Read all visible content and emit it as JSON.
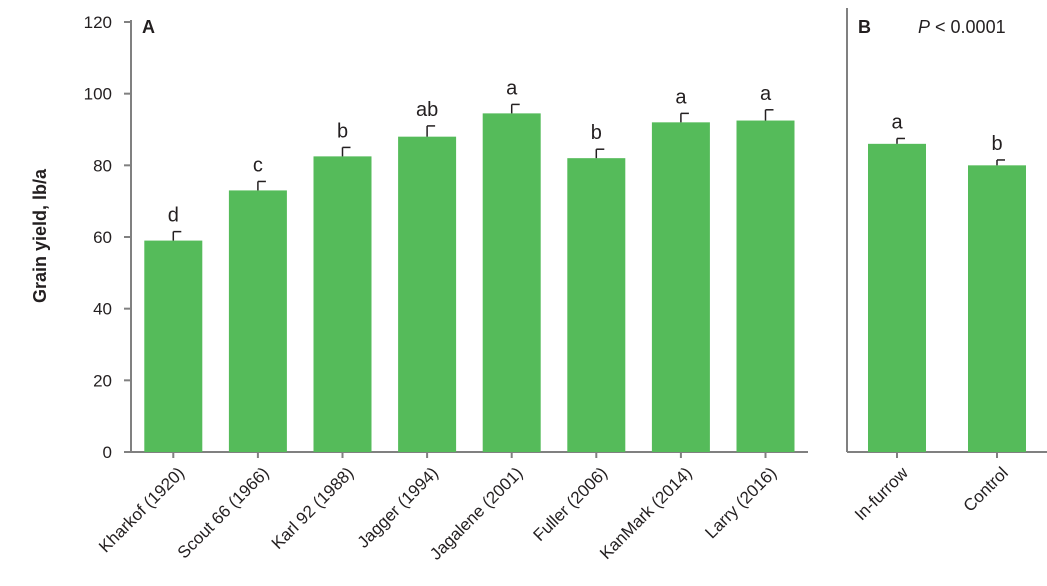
{
  "chart_data": [
    {
      "type": "bar",
      "panel_label": "A",
      "ylabel": "Grain yield, lb/a",
      "ylim": [
        0,
        120
      ],
      "yticks": [
        0,
        20,
        40,
        60,
        80,
        100,
        120
      ],
      "categories": [
        "Kharkof (1920)",
        "Scout 66 (1966)",
        "Karl 92 (1988)",
        "Jagger (1994)",
        "Jagalene (2001)",
        "Fuller (2006)",
        "KanMark (2014)",
        "Larry (2016)"
      ],
      "values": [
        59,
        73,
        82.5,
        88,
        94.5,
        82,
        92,
        92.5
      ],
      "errors": [
        2.5,
        2.5,
        2.5,
        3,
        2.5,
        2.5,
        2.5,
        3
      ],
      "significance": [
        "d",
        "c",
        "b",
        "ab",
        "a",
        "b",
        "a",
        "a"
      ],
      "bar_color": "#55bb5a"
    },
    {
      "type": "bar",
      "panel_label": "B",
      "annotation_italic": "P",
      "annotation_rest": " < 0.0001",
      "ylim": [
        0,
        120
      ],
      "categories": [
        "In-furrow",
        "Control"
      ],
      "values": [
        86,
        80
      ],
      "errors": [
        1.5,
        1.5
      ],
      "significance": [
        "a",
        "b"
      ],
      "bar_color": "#55bb5a"
    }
  ],
  "colors": {
    "axis": "#808080",
    "text": "#231f20"
  }
}
